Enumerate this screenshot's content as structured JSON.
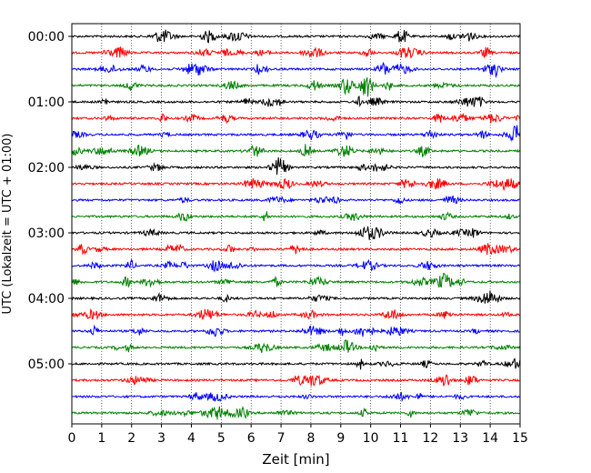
{
  "chart_data": {
    "type": "line",
    "title": "",
    "xlabel": "Zeit  [min]",
    "ylabel": "UTC (Lokalzeit = UTC + 01:00)",
    "xlim": [
      0,
      15
    ],
    "x_ticks": [
      "0",
      "1",
      "2",
      "3",
      "4",
      "5",
      "6",
      "7",
      "8",
      "9",
      "10",
      "11",
      "12",
      "13",
      "14",
      "15"
    ],
    "y_tick_labels": [
      "00:00",
      "01:00",
      "02:00",
      "03:00",
      "04:00",
      "05:00"
    ],
    "trace_interval_minutes": 15,
    "grid": "vertical dotted lines at each minute",
    "color_cycle": [
      "#000000",
      "#ff0000",
      "#0000ff",
      "#008000"
    ],
    "traces": [
      {
        "start": "00:00",
        "color": "#000000"
      },
      {
        "start": "00:15",
        "color": "#ff0000"
      },
      {
        "start": "00:30",
        "color": "#0000ff"
      },
      {
        "start": "00:45",
        "color": "#008000"
      },
      {
        "start": "01:00",
        "color": "#000000"
      },
      {
        "start": "01:15",
        "color": "#ff0000"
      },
      {
        "start": "01:30",
        "color": "#0000ff"
      },
      {
        "start": "01:45",
        "color": "#008000"
      },
      {
        "start": "02:00",
        "color": "#000000"
      },
      {
        "start": "02:15",
        "color": "#ff0000"
      },
      {
        "start": "02:30",
        "color": "#0000ff"
      },
      {
        "start": "02:45",
        "color": "#008000"
      },
      {
        "start": "03:00",
        "color": "#000000"
      },
      {
        "start": "03:15",
        "color": "#ff0000"
      },
      {
        "start": "03:30",
        "color": "#0000ff"
      },
      {
        "start": "03:45",
        "color": "#008000"
      },
      {
        "start": "04:00",
        "color": "#000000"
      },
      {
        "start": "04:15",
        "color": "#ff0000"
      },
      {
        "start": "04:30",
        "color": "#0000ff"
      },
      {
        "start": "04:45",
        "color": "#008000"
      },
      {
        "start": "05:00",
        "color": "#000000"
      },
      {
        "start": "05:15",
        "color": "#ff0000"
      },
      {
        "start": "05:30",
        "color": "#0000ff"
      },
      {
        "start": "05:45",
        "color": "#008000"
      }
    ]
  }
}
